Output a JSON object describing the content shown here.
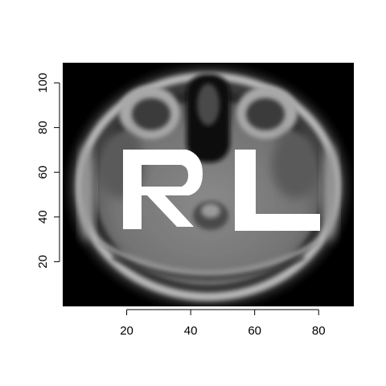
{
  "figure": {
    "kind": "axial brain MRI slice with overlaid letter mask",
    "overlay_letters": "RL",
    "background_color": "#ffffff",
    "image_background_color": "#000000",
    "overlay_color": "#ffffff"
  },
  "axes": {
    "x": {
      "range": [
        0,
        91
      ],
      "ticks": [
        "20",
        "40",
        "60",
        "80"
      ],
      "tick_values": [
        20,
        40,
        60,
        80
      ]
    },
    "y": {
      "range": [
        0,
        109
      ],
      "ticks": [
        "20",
        "40",
        "60",
        "80",
        "100"
      ],
      "tick_values": [
        20,
        40,
        60,
        80,
        100
      ]
    }
  }
}
